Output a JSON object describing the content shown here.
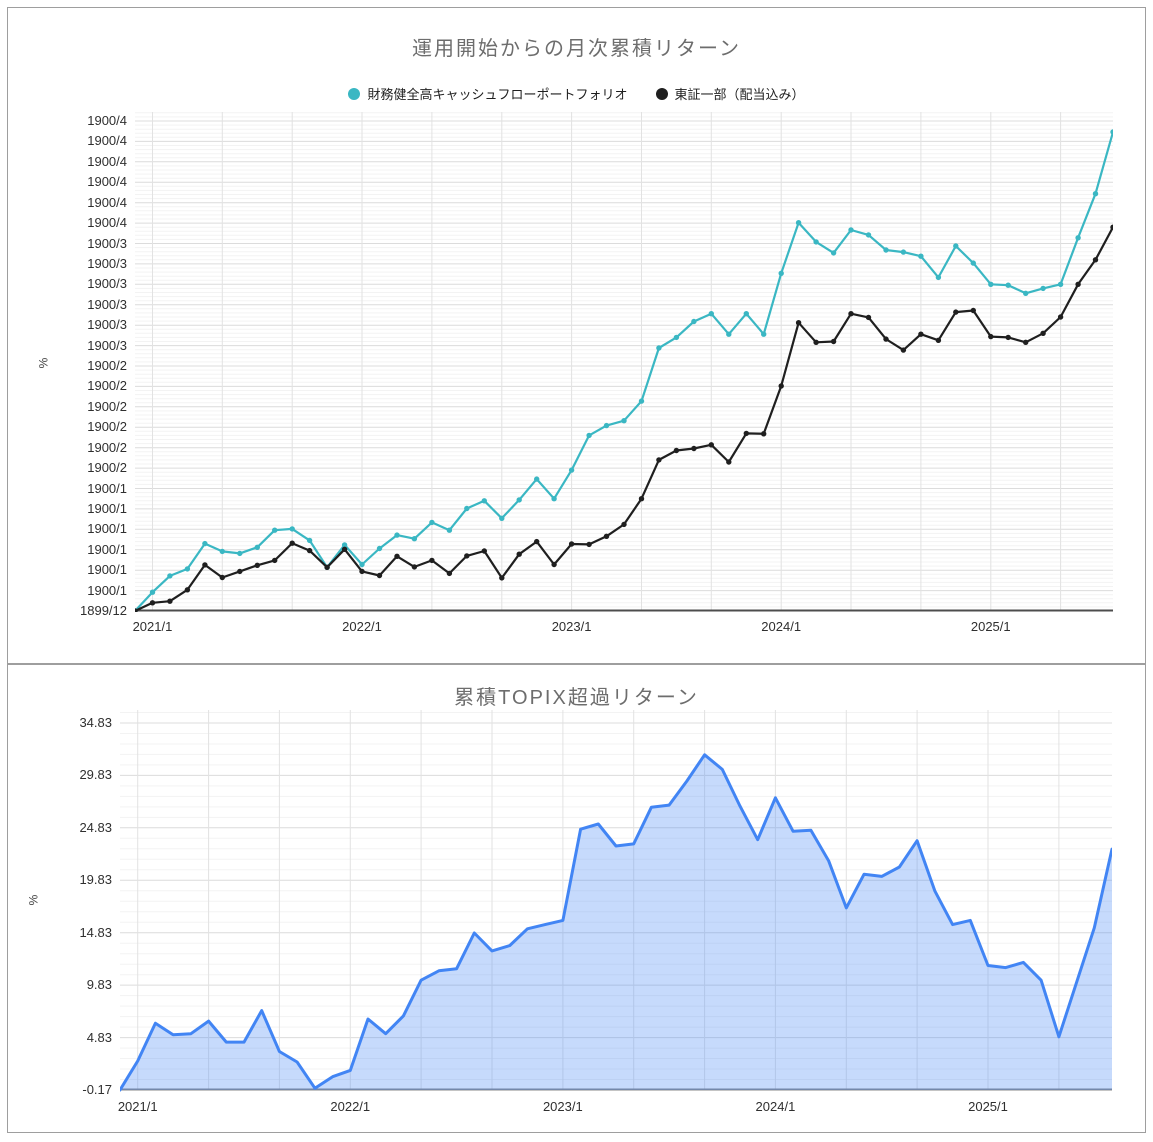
{
  "window": {
    "background": "#ffffff",
    "border_color": "#9e9e9e"
  },
  "panel1": {
    "title": "運用開始からの月次累積リターン",
    "y_axis_title": "%",
    "legend": [
      {
        "label": "財務健全高キャッシュフローポートフォリオ",
        "color": "#3AB7C3"
      },
      {
        "label": "東証一部（配当込み）",
        "color": "#1F1F1F"
      }
    ],
    "chart_data": {
      "type": "line",
      "x_start": "2020/12",
      "x_frequency": "monthly",
      "n_points": 57,
      "x_tick_labels": [
        "2021/1",
        "2022/1",
        "2023/1",
        "2024/1",
        "2025/1"
      ],
      "x_tick_indices": [
        1,
        13,
        25,
        37,
        49
      ],
      "x_gridline_every_months": 4,
      "ylim": [
        0,
        120
      ],
      "y_major_step": 5,
      "y_minor_step": 1,
      "ylabel": "%",
      "y_tick_labels_top_to_bottom": [
        "1900/4",
        "1900/4",
        "1900/4",
        "1900/4",
        "1900/4",
        "1900/4",
        "1900/3",
        "1900/3",
        "1900/3",
        "1900/3",
        "1900/3",
        "1900/3",
        "1900/2",
        "1900/2",
        "1900/2",
        "1900/2",
        "1900/2",
        "1900/2",
        "1900/1",
        "1900/1",
        "1900/1",
        "1900/1",
        "1900/1",
        "1900/1",
        "1899/12"
      ],
      "series": [
        {
          "name": "財務健全高キャッシュフローポートフォリオ",
          "color": "#3AB7C3",
          "markers": true,
          "values": [
            0,
            4.6,
            8.6,
            10.3,
            16.5,
            14.6,
            14.1,
            15.6,
            19.8,
            20.1,
            17.3,
            10.7,
            16.2,
            11.4,
            15.3,
            18.6,
            17.7,
            21.7,
            19.8,
            25.1,
            27.0,
            22.7,
            27.2,
            32.3,
            27.5,
            34.5,
            43.0,
            45.4,
            46.6,
            51.4,
            64.4,
            67.0,
            70.9,
            72.8,
            67.8,
            72.8,
            67.8,
            82.7,
            95.1,
            90.4,
            87.7,
            93.3,
            92.1,
            88.4,
            87.9,
            86.9,
            81.7,
            89.4,
            85.2,
            80.0,
            79.8,
            77.8,
            79.0,
            80.0,
            91.4,
            102.2,
            117.3
          ]
        },
        {
          "name": "東証一部（配当込み）",
          "color": "#1F1F1F",
          "markers": true,
          "values": [
            0,
            2.0,
            2.4,
            5.2,
            11.3,
            8.2,
            9.7,
            11.2,
            12.4,
            16.6,
            14.8,
            10.7,
            15.1,
            9.7,
            8.7,
            13.4,
            10.8,
            12.4,
            9.2,
            13.5,
            14.7,
            8.1,
            13.9,
            17.0,
            11.4,
            16.4,
            16.3,
            18.3,
            21.2,
            27.5,
            37.0,
            39.3,
            39.8,
            40.7,
            36.5,
            43.5,
            43.4,
            55.1,
            70.6,
            65.8,
            66.0,
            72.8,
            71.9,
            66.6,
            63.9,
            67.8,
            66.3,
            73.2,
            73.6,
            67.2,
            67.0,
            65.8,
            68.0,
            72.0,
            80.0,
            86.0,
            94.0
          ]
        }
      ]
    }
  },
  "panel2": {
    "title": "累積TOPIX超過リターン",
    "y_axis_title": "%",
    "chart_data": {
      "type": "area",
      "x_start": "2020/12",
      "x_frequency": "monthly",
      "n_points": 57,
      "x_tick_labels": [
        "2021/1",
        "2022/1",
        "2023/1",
        "2024/1",
        "2025/1"
      ],
      "x_tick_indices": [
        1,
        13,
        25,
        37,
        49
      ],
      "x_gridline_every_months": 4,
      "ylim": [
        -0.17,
        34.83
      ],
      "y_major_step": 5,
      "y_minor_step": 1,
      "ylabel": "%",
      "y_tick_labels_top_to_bottom": [
        "34.83",
        "29.83",
        "24.83",
        "19.83",
        "14.83",
        "9.83",
        "4.83",
        "-0.17"
      ],
      "series": [
        {
          "name": "累積TOPIX超過リターン",
          "color": "#4285F4",
          "fill": "rgba(66,133,244,0.30)",
          "markers": false,
          "values": [
            -0.17,
            2.6,
            6.2,
            5.1,
            5.2,
            6.4,
            4.4,
            4.4,
            7.4,
            3.5,
            2.5,
            0.0,
            1.1,
            1.7,
            6.6,
            5.2,
            6.9,
            10.3,
            11.2,
            11.4,
            14.8,
            13.1,
            13.6,
            15.2,
            15.6,
            16.0,
            24.7,
            25.2,
            23.1,
            23.3,
            26.8,
            27.0,
            29.3,
            31.8,
            30.4,
            26.9,
            23.7,
            27.7,
            24.5,
            24.6,
            21.7,
            17.2,
            20.4,
            20.2,
            21.1,
            23.6,
            18.8,
            15.6,
            16.0,
            11.7,
            11.5,
            12.0,
            10.3,
            4.9,
            10.1,
            15.3,
            22.8
          ]
        }
      ]
    }
  }
}
